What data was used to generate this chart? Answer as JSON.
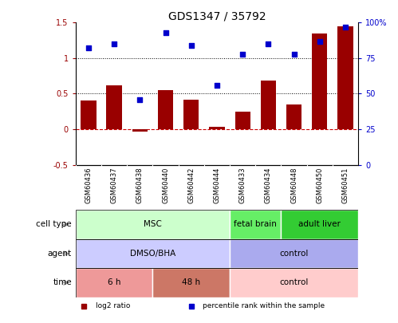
{
  "title": "GDS1347 / 35792",
  "samples": [
    "GSM60436",
    "GSM60437",
    "GSM60438",
    "GSM60440",
    "GSM60442",
    "GSM60444",
    "GSM60433",
    "GSM60434",
    "GSM60448",
    "GSM60450",
    "GSM60451"
  ],
  "log2_ratio": [
    0.4,
    0.62,
    -0.03,
    0.55,
    0.42,
    0.03,
    0.25,
    0.68,
    0.35,
    1.35,
    1.45
  ],
  "percentile_rank": [
    82,
    85,
    46,
    93,
    84,
    56,
    78,
    85,
    78,
    87,
    97
  ],
  "bar_color": "#990000",
  "dot_color": "#0000CC",
  "ylim_left": [
    -0.5,
    1.5
  ],
  "ylim_right": [
    0,
    100
  ],
  "yticks_left": [
    -0.5,
    0,
    0.5,
    1.0,
    1.5
  ],
  "yticks_left_labels": [
    "-0.5",
    "0",
    "0.5",
    "1",
    "1.5"
  ],
  "yticks_right": [
    0,
    25,
    50,
    75,
    100
  ],
  "yticks_right_labels": [
    "0",
    "25",
    "50",
    "75",
    "100%"
  ],
  "hline_values": [
    0.5,
    1.0
  ],
  "zero_line_color": "#cc0000",
  "cell_type_labels": [
    {
      "label": "MSC",
      "start": 0,
      "end": 6,
      "color": "#ccffcc"
    },
    {
      "label": "fetal brain",
      "start": 6,
      "end": 8,
      "color": "#66ee66"
    },
    {
      "label": "adult liver",
      "start": 8,
      "end": 11,
      "color": "#33cc33"
    }
  ],
  "agent_labels": [
    {
      "label": "DMSO/BHA",
      "start": 0,
      "end": 6,
      "color": "#ccccff"
    },
    {
      "label": "control",
      "start": 6,
      "end": 11,
      "color": "#aaaaee"
    }
  ],
  "time_labels": [
    {
      "label": "6 h",
      "start": 0,
      "end": 3,
      "color": "#ee9999"
    },
    {
      "label": "48 h",
      "start": 3,
      "end": 6,
      "color": "#cc7766"
    },
    {
      "label": "control",
      "start": 6,
      "end": 11,
      "color": "#ffcccc"
    }
  ],
  "row_labels": [
    "cell type",
    "agent",
    "time"
  ],
  "legend_items": [
    {
      "label": "log2 ratio",
      "color": "#990000",
      "marker": "s"
    },
    {
      "label": "percentile rank within the sample",
      "color": "#0000CC",
      "marker": "s"
    }
  ],
  "arrow_color": "#999999"
}
